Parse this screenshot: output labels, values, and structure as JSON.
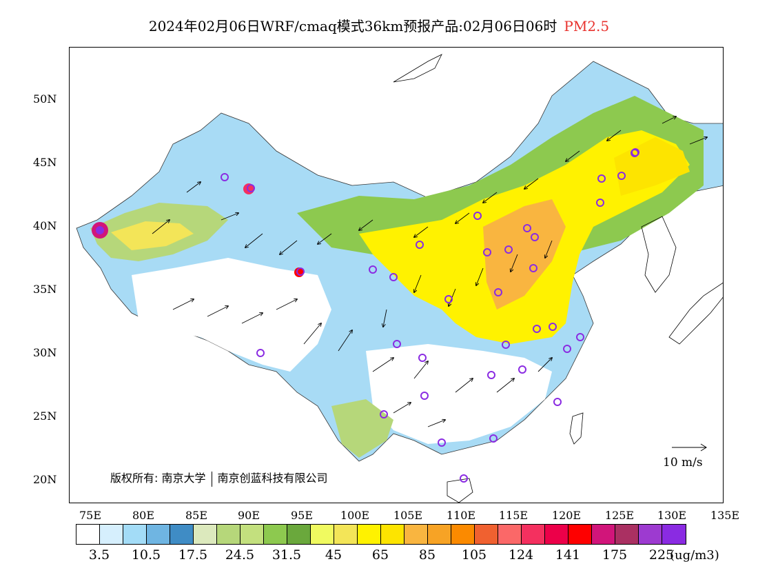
{
  "header": {
    "title": "2024年02月06日WRF/cmaq模式36km预报产品:02月06日06时",
    "variable": "PM2.5"
  },
  "axes": {
    "latitude_ticks": [
      "50N",
      "45N",
      "40N",
      "35N",
      "30N",
      "25N",
      "20N"
    ],
    "longitude_ticks": [
      "75E",
      "80E",
      "85E",
      "90E",
      "95E",
      "100E",
      "105E",
      "110E",
      "115E",
      "120E",
      "125E",
      "130E",
      "135E"
    ]
  },
  "wind_scale": {
    "label": "10 m/s"
  },
  "copyright": {
    "prefix": "版权所有:",
    "org1": "南京大学",
    "org2": "南京创蓝科技有限公司"
  },
  "legend": {
    "colors": [
      "#ffffff",
      "#d6effd",
      "#a3dcf7",
      "#6fb5e2",
      "#3f8cc5",
      "#dce9bd",
      "#b6d77a",
      "#c3e07e",
      "#8dc94f",
      "#6aa83c",
      "#f0fa60",
      "#f3e558",
      "#fff200",
      "#fde400",
      "#f9b540",
      "#f7a325",
      "#fb8a00",
      "#f06130",
      "#fb6868",
      "#f4305f",
      "#ec0049",
      "#fe0000",
      "#d1157a",
      "#aa3062",
      "#9d3ad0",
      "#8a2be2"
    ],
    "labels": [
      "3.5",
      "10.5",
      "17.5",
      "24.5",
      "31.5",
      "45",
      "65",
      "85",
      "105",
      "124",
      "141",
      "175",
      "225"
    ],
    "unit": "(ug/m3)"
  }
}
